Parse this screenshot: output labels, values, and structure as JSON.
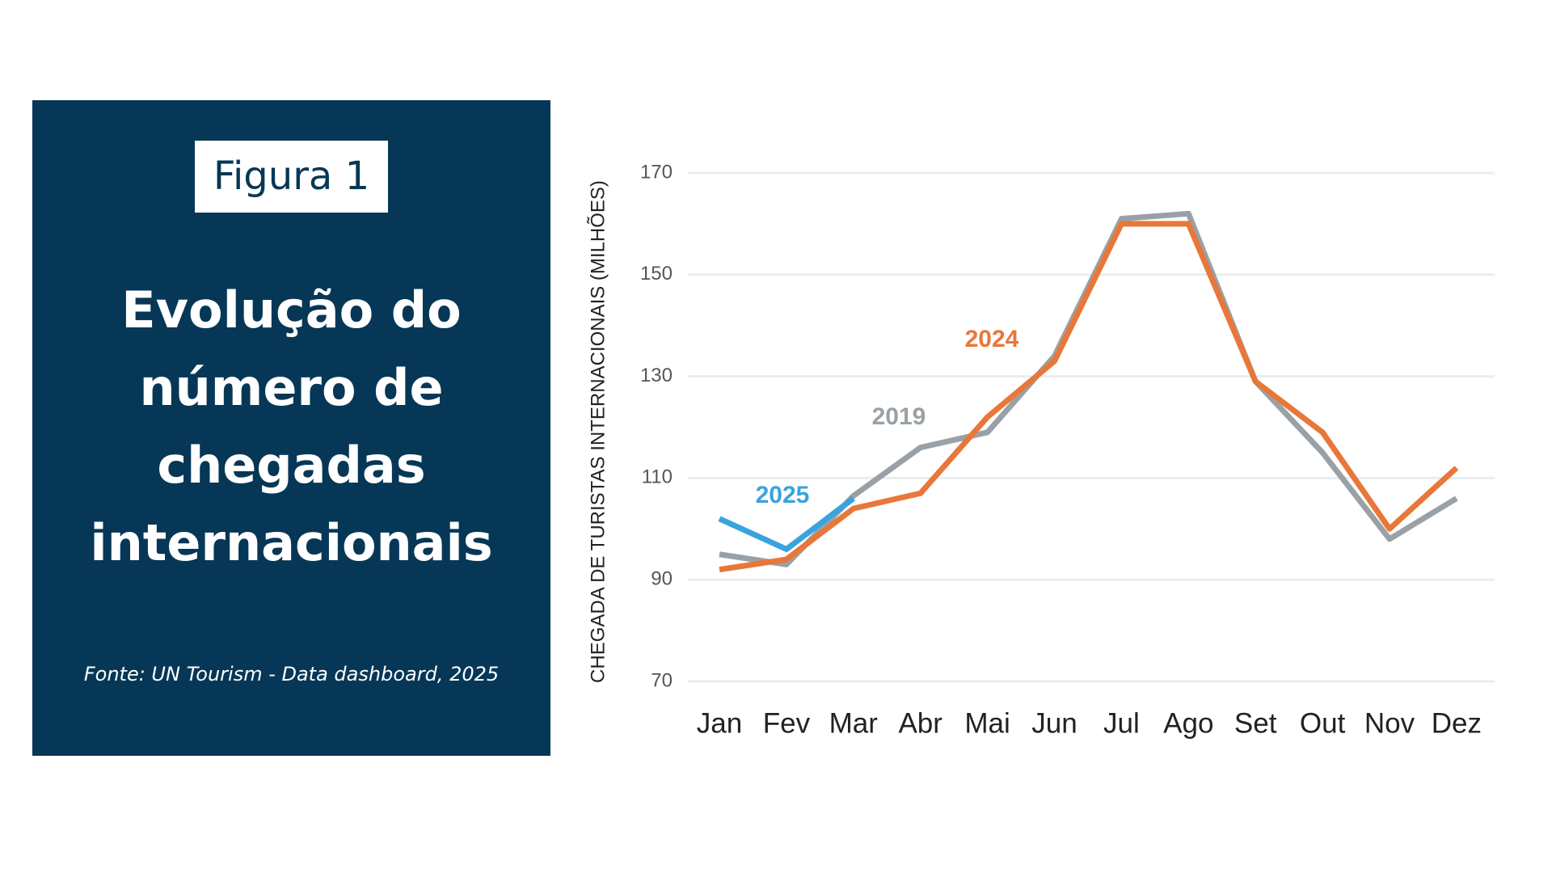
{
  "panel": {
    "figure": "Figura 1",
    "title": "Evolução do número de chegadas internacionais",
    "source": "Fonte: UN Tourism - Data dashboard, 2025"
  },
  "chart_data": {
    "type": "line",
    "ylabel": "CHEGADA DE TURISTAS INTERNACIONAIS (MILHÕES)",
    "categories": [
      "Jan",
      "Fev",
      "Mar",
      "Abr",
      "Mai",
      "Jun",
      "Jul",
      "Ago",
      "Set",
      "Out",
      "Nov",
      "Dez"
    ],
    "series": [
      {
        "name": "2019",
        "color": "#9aa1a6",
        "values": [
          95,
          93,
          106.5,
          116,
          119,
          134,
          161,
          162,
          129,
          115,
          98,
          106
        ]
      },
      {
        "name": "2024",
        "color": "#e8773a",
        "values": [
          92,
          94,
          104,
          107,
          122,
          133,
          160,
          160,
          129,
          119,
          100,
          112
        ]
      },
      {
        "name": "2025",
        "color": "#3aa3dd",
        "values": [
          102,
          96,
          106,
          null,
          null,
          null,
          null,
          null,
          null,
          null,
          null,
          null
        ]
      }
    ],
    "ylim": [
      70,
      170
    ],
    "yticks": [
      70,
      90,
      110,
      130,
      150,
      170
    ],
    "grid": true
  }
}
